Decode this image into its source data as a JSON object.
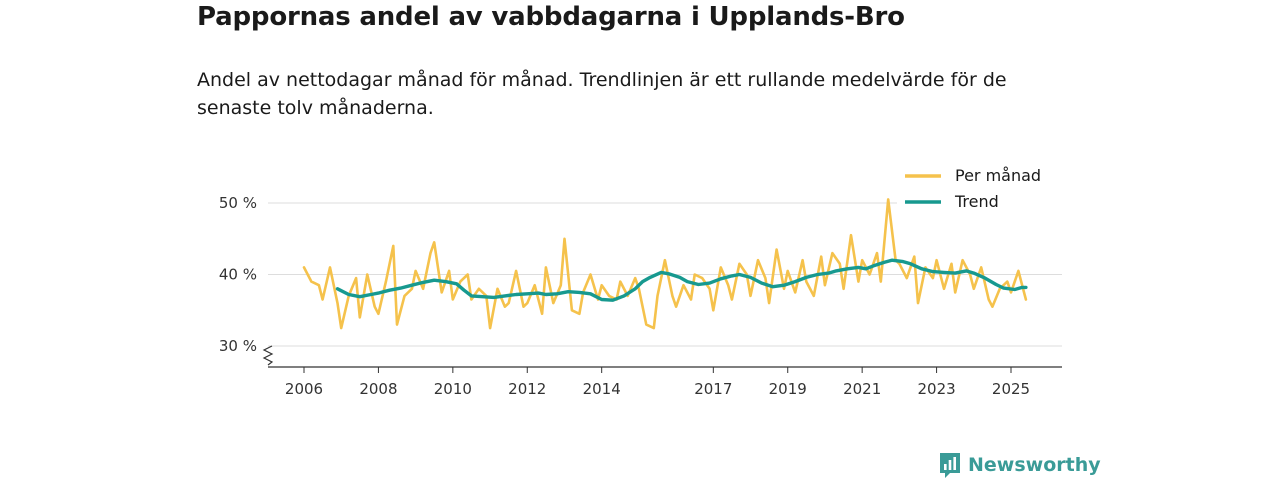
{
  "header": {
    "title": "Pappornas andel av vabbdagarna i Upplands-Bro",
    "subtitle": "Andel av nettodagar månad för månad. Trendlinjen är ett rullande medelvärde för de senaste tolv månaderna."
  },
  "brand": {
    "name": "Newsworthy",
    "color": "#3a9b97"
  },
  "colors": {
    "monthly": "#f5c24c",
    "trend": "#17998f",
    "grid": "#dddddd",
    "axis": "#333333"
  },
  "chart_data": {
    "type": "line",
    "title": "Pappornas andel av vabbdagarna i Upplands-Bro",
    "xlabel": "",
    "ylabel": "",
    "x_range": [
      2006,
      2025.5
    ],
    "ylim": [
      30,
      50
    ],
    "y_axis_break": true,
    "y_ticks": [
      {
        "value": 30,
        "label": "30 %"
      },
      {
        "value": 40,
        "label": "40 %"
      },
      {
        "value": 50,
        "label": "50 %"
      }
    ],
    "x_ticks": [
      {
        "value": 2006,
        "label": "2006"
      },
      {
        "value": 2008,
        "label": "2008"
      },
      {
        "value": 2010,
        "label": "2010"
      },
      {
        "value": 2012,
        "label": "2012"
      },
      {
        "value": 2014,
        "label": "2014"
      },
      {
        "value": 2017,
        "label": "2017"
      },
      {
        "value": 2019,
        "label": "2019"
      },
      {
        "value": 2021,
        "label": "2021"
      },
      {
        "value": 2023,
        "label": "2023"
      },
      {
        "value": 2025,
        "label": "2025"
      }
    ],
    "legend": {
      "position": "top-right",
      "entries": [
        "Per månad",
        "Trend"
      ]
    },
    "series": [
      {
        "name": "Per månad",
        "points": [
          [
            2006.0,
            41.0
          ],
          [
            2006.2,
            39.0
          ],
          [
            2006.4,
            38.5
          ],
          [
            2006.5,
            36.5
          ],
          [
            2006.7,
            41.0
          ],
          [
            2006.9,
            36.0
          ],
          [
            2007.0,
            32.5
          ],
          [
            2007.2,
            37.0
          ],
          [
            2007.4,
            39.5
          ],
          [
            2007.5,
            34.0
          ],
          [
            2007.7,
            40.0
          ],
          [
            2007.9,
            35.5
          ],
          [
            2008.0,
            34.5
          ],
          [
            2008.2,
            39.0
          ],
          [
            2008.4,
            44.0
          ],
          [
            2008.5,
            33.0
          ],
          [
            2008.7,
            37.0
          ],
          [
            2008.9,
            38.0
          ],
          [
            2009.0,
            40.5
          ],
          [
            2009.2,
            38.0
          ],
          [
            2009.4,
            43.0
          ],
          [
            2009.5,
            44.5
          ],
          [
            2009.7,
            37.5
          ],
          [
            2009.9,
            40.5
          ],
          [
            2010.0,
            36.5
          ],
          [
            2010.2,
            39.0
          ],
          [
            2010.4,
            40.0
          ],
          [
            2010.5,
            36.5
          ],
          [
            2010.7,
            38.0
          ],
          [
            2010.9,
            37.0
          ],
          [
            2011.0,
            32.5
          ],
          [
            2011.2,
            38.0
          ],
          [
            2011.4,
            35.5
          ],
          [
            2011.5,
            36.0
          ],
          [
            2011.7,
            40.5
          ],
          [
            2011.9,
            35.5
          ],
          [
            2012.0,
            36.0
          ],
          [
            2012.2,
            38.5
          ],
          [
            2012.4,
            34.5
          ],
          [
            2012.5,
            41.0
          ],
          [
            2012.7,
            36.0
          ],
          [
            2012.9,
            38.5
          ],
          [
            2013.0,
            45.0
          ],
          [
            2013.2,
            35.0
          ],
          [
            2013.4,
            34.5
          ],
          [
            2013.5,
            37.5
          ],
          [
            2013.7,
            40.0
          ],
          [
            2013.9,
            36.5
          ],
          [
            2014.0,
            38.5
          ],
          [
            2014.2,
            37.0
          ],
          [
            2014.4,
            36.5
          ],
          [
            2014.5,
            39.0
          ],
          [
            2014.7,
            37.0
          ],
          [
            2014.9,
            39.5
          ],
          [
            2015.0,
            38.0
          ],
          [
            2015.2,
            33.0
          ],
          [
            2015.4,
            32.5
          ],
          [
            2015.5,
            37.0
          ],
          [
            2015.7,
            42.0
          ],
          [
            2015.9,
            37.0
          ],
          [
            2016.0,
            35.5
          ],
          [
            2016.2,
            38.5
          ],
          [
            2016.4,
            36.5
          ],
          [
            2016.5,
            40.0
          ],
          [
            2016.7,
            39.5
          ],
          [
            2016.9,
            38.0
          ],
          [
            2017.0,
            35.0
          ],
          [
            2017.2,
            41.0
          ],
          [
            2017.4,
            38.5
          ],
          [
            2017.5,
            36.5
          ],
          [
            2017.7,
            41.5
          ],
          [
            2017.9,
            40.0
          ],
          [
            2018.0,
            37.0
          ],
          [
            2018.2,
            42.0
          ],
          [
            2018.4,
            39.5
          ],
          [
            2018.5,
            36.0
          ],
          [
            2018.7,
            43.5
          ],
          [
            2018.9,
            38.0
          ],
          [
            2019.0,
            40.5
          ],
          [
            2019.2,
            37.5
          ],
          [
            2019.4,
            42.0
          ],
          [
            2019.5,
            39.0
          ],
          [
            2019.7,
            37.0
          ],
          [
            2019.9,
            42.5
          ],
          [
            2020.0,
            38.5
          ],
          [
            2020.2,
            43.0
          ],
          [
            2020.4,
            41.5
          ],
          [
            2020.5,
            38.0
          ],
          [
            2020.7,
            45.5
          ],
          [
            2020.9,
            39.0
          ],
          [
            2021.0,
            42.0
          ],
          [
            2021.2,
            40.0
          ],
          [
            2021.4,
            43.0
          ],
          [
            2021.5,
            39.0
          ],
          [
            2021.7,
            50.5
          ],
          [
            2021.9,
            42.0
          ],
          [
            2022.0,
            41.5
          ],
          [
            2022.2,
            39.5
          ],
          [
            2022.4,
            42.5
          ],
          [
            2022.5,
            36.0
          ],
          [
            2022.7,
            41.0
          ],
          [
            2022.9,
            39.5
          ],
          [
            2023.0,
            42.0
          ],
          [
            2023.2,
            38.0
          ],
          [
            2023.4,
            41.5
          ],
          [
            2023.5,
            37.5
          ],
          [
            2023.7,
            42.0
          ],
          [
            2023.9,
            40.0
          ],
          [
            2024.0,
            38.0
          ],
          [
            2024.2,
            41.0
          ],
          [
            2024.4,
            36.5
          ],
          [
            2024.5,
            35.5
          ],
          [
            2024.7,
            38.0
          ],
          [
            2024.9,
            39.0
          ],
          [
            2025.0,
            37.5
          ],
          [
            2025.2,
            40.5
          ],
          [
            2025.4,
            36.5
          ]
        ]
      },
      {
        "name": "Trend",
        "points": [
          [
            2006.9,
            38.0
          ],
          [
            2007.2,
            37.2
          ],
          [
            2007.5,
            36.9
          ],
          [
            2007.8,
            37.2
          ],
          [
            2008.0,
            37.4
          ],
          [
            2008.3,
            37.8
          ],
          [
            2008.6,
            38.1
          ],
          [
            2008.9,
            38.5
          ],
          [
            2009.2,
            38.9
          ],
          [
            2009.5,
            39.2
          ],
          [
            2009.8,
            39.0
          ],
          [
            2010.1,
            38.7
          ],
          [
            2010.3,
            37.8
          ],
          [
            2010.5,
            37.0
          ],
          [
            2010.8,
            36.9
          ],
          [
            2011.1,
            36.8
          ],
          [
            2011.4,
            37.0
          ],
          [
            2011.7,
            37.2
          ],
          [
            2012.0,
            37.3
          ],
          [
            2012.3,
            37.4
          ],
          [
            2012.5,
            37.2
          ],
          [
            2012.8,
            37.3
          ],
          [
            2013.1,
            37.6
          ],
          [
            2013.4,
            37.5
          ],
          [
            2013.7,
            37.3
          ],
          [
            2014.0,
            36.5
          ],
          [
            2014.3,
            36.4
          ],
          [
            2014.6,
            37.0
          ],
          [
            2014.9,
            38.0
          ],
          [
            2015.1,
            39.0
          ],
          [
            2015.3,
            39.6
          ],
          [
            2015.6,
            40.3
          ],
          [
            2015.8,
            40.1
          ],
          [
            2016.1,
            39.6
          ],
          [
            2016.3,
            39.0
          ],
          [
            2016.6,
            38.6
          ],
          [
            2016.9,
            38.8
          ],
          [
            2017.2,
            39.4
          ],
          [
            2017.5,
            39.8
          ],
          [
            2017.7,
            40.0
          ],
          [
            2018.0,
            39.6
          ],
          [
            2018.3,
            38.8
          ],
          [
            2018.6,
            38.3
          ],
          [
            2018.9,
            38.5
          ],
          [
            2019.2,
            39.0
          ],
          [
            2019.5,
            39.6
          ],
          [
            2019.8,
            40.0
          ],
          [
            2020.1,
            40.2
          ],
          [
            2020.3,
            40.5
          ],
          [
            2020.6,
            40.8
          ],
          [
            2020.9,
            41.0
          ],
          [
            2021.1,
            40.8
          ],
          [
            2021.3,
            41.2
          ],
          [
            2021.6,
            41.7
          ],
          [
            2021.8,
            42.0
          ],
          [
            2022.1,
            41.8
          ],
          [
            2022.3,
            41.5
          ],
          [
            2022.6,
            40.8
          ],
          [
            2022.9,
            40.4
          ],
          [
            2023.2,
            40.3
          ],
          [
            2023.5,
            40.2
          ],
          [
            2023.8,
            40.5
          ],
          [
            2024.0,
            40.2
          ],
          [
            2024.3,
            39.5
          ],
          [
            2024.6,
            38.6
          ],
          [
            2024.8,
            38.1
          ],
          [
            2025.1,
            37.9
          ],
          [
            2025.3,
            38.2
          ],
          [
            2025.4,
            38.2
          ]
        ]
      }
    ]
  }
}
